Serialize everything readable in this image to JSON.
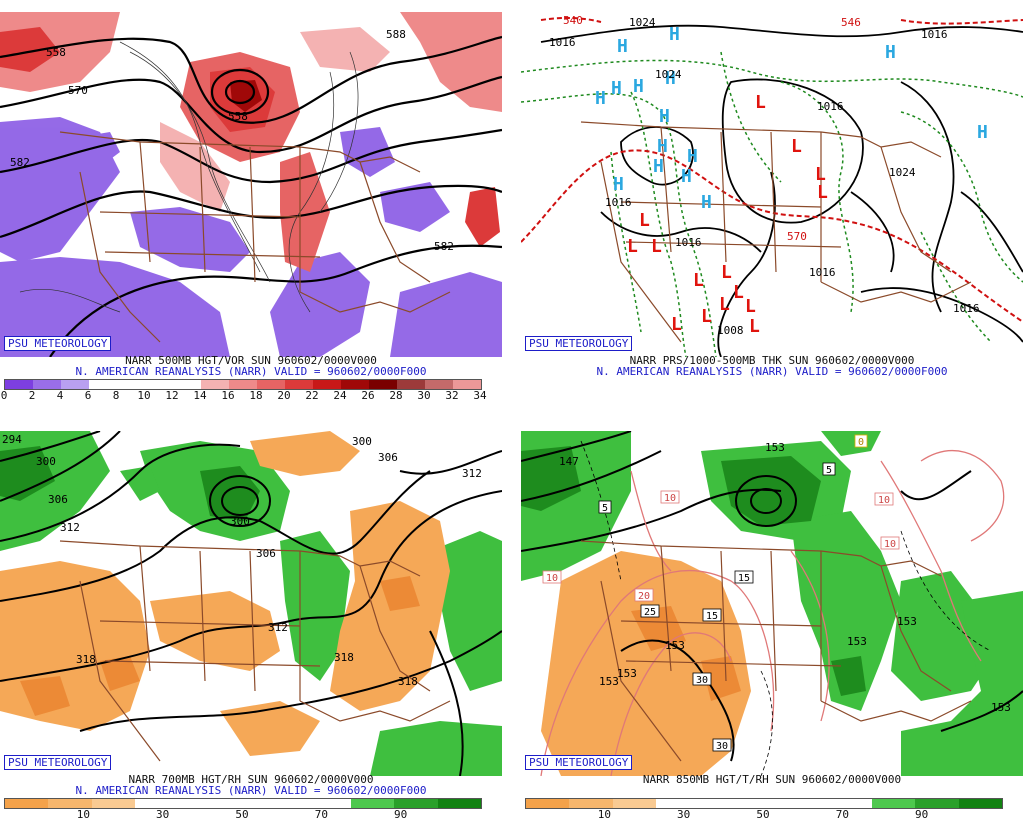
{
  "panels": [
    {
      "id": "vor500",
      "brand": "PSU METEOROLOGY",
      "caption_line1": "NARR 500MB HGT/VOR SUN 960602/0000V000",
      "caption_line2": "N. AMERICAN REANALYSIS (NARR) VALID = 960602/0000F000",
      "colorbar_colors": [
        "#7d3fe0",
        "#9a6ee8",
        "#b9a0f0",
        "#ffffff",
        "#ffffff",
        "#ffffff",
        "#ffffff",
        "#f4b2b2",
        "#ee8a8a",
        "#e66464",
        "#dc3a3a",
        "#c81818",
        "#a00808",
        "#7a0000",
        "#9c3a3a",
        "#c46a6a",
        "#ec9898"
      ],
      "colorbar_ticks": [
        "0",
        "2",
        "4",
        "6",
        "8",
        "10",
        "12",
        "14",
        "16",
        "18",
        "20",
        "22",
        "24",
        "26",
        "28",
        "30",
        "32",
        "34"
      ],
      "contour_labels": [
        "558",
        "570",
        "558",
        "582",
        "582",
        "588"
      ]
    },
    {
      "id": "prs1000",
      "brand": "PSU METEOROLOGY",
      "caption_line1": "NARR PRS/1000-500MB THK SUN 960602/0000V000",
      "caption_line2": "N. AMERICAN REANALYSIS (NARR) VALID = 960602/0000F000",
      "contour_labels": [
        "1016",
        "1024",
        "1024",
        "1016",
        "1016",
        "1016",
        "1024",
        "1016",
        "1016",
        "1008",
        "540",
        "570",
        "546",
        "1016"
      ],
      "high_symbol": "H",
      "low_symbol": "L"
    },
    {
      "id": "rh700",
      "brand": "PSU METEOROLOGY",
      "caption_line1": "NARR 700MB HGT/RH SUN 960602/0000V000",
      "caption_line2": "N. AMERICAN REANALYSIS (NARR) VALID = 960602/0000F000",
      "colorbar_colors": [
        "#f4a24a",
        "#f7b66c",
        "#f9ca92",
        "#ffffff",
        "#ffffff",
        "#ffffff",
        "#ffffff",
        "#ffffff",
        "#4ec84e",
        "#2aa02a",
        "#128212"
      ],
      "colorbar_ticks": [
        "10",
        "30",
        "50",
        "70",
        "90"
      ],
      "contour_labels": [
        "294",
        "300",
        "306",
        "312",
        "300",
        "300",
        "306",
        "312",
        "318",
        "318",
        "318",
        "312",
        "306"
      ]
    },
    {
      "id": "t850",
      "brand": "PSU METEOROLOGY",
      "caption_line1": "NARR 850MB HGT/T/RH SUN 960602/0000V000",
      "caption_line2": "",
      "colorbar_colors": [
        "#f4a24a",
        "#f7b66c",
        "#f9ca92",
        "#ffffff",
        "#ffffff",
        "#ffffff",
        "#ffffff",
        "#ffffff",
        "#4ec84e",
        "#2aa02a",
        "#128212"
      ],
      "colorbar_ticks": [
        "10",
        "30",
        "50",
        "70",
        "90"
      ],
      "contour_labels": [
        "147",
        "153",
        "153",
        "153",
        "153",
        "153",
        "153",
        "153"
      ],
      "temp_labels": [
        "5",
        "5",
        "10",
        "10",
        "10",
        "10",
        "15",
        "15",
        "20",
        "25",
        "30",
        "30",
        "0"
      ]
    }
  ]
}
